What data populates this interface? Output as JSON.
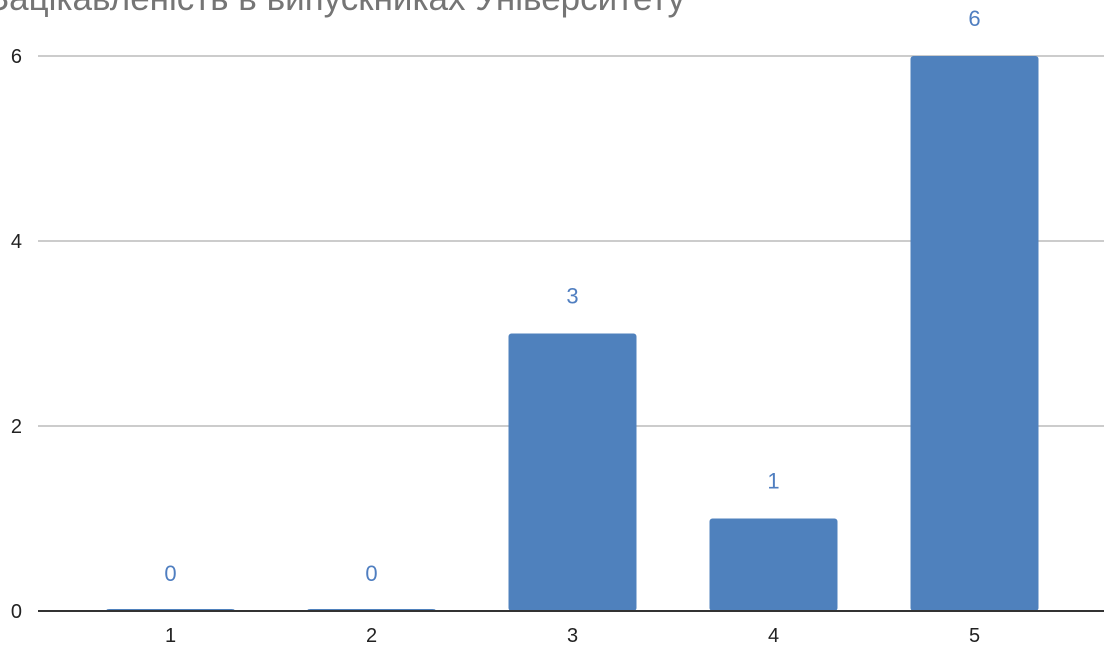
{
  "chart_data": {
    "type": "bar",
    "title": "Зацікавленість в випускниках Університету",
    "categories": [
      "1",
      "2",
      "3",
      "4",
      "5"
    ],
    "values": [
      0,
      0,
      3,
      1,
      6
    ],
    "ylim": [
      0,
      6
    ],
    "yticks": [
      0,
      2,
      4,
      6
    ],
    "grid": true,
    "legend": "none",
    "bar_color": "#4f81bd",
    "label_color": "#4f7ec0",
    "grid_color": "#cccccc",
    "axis_color": "#333333"
  }
}
